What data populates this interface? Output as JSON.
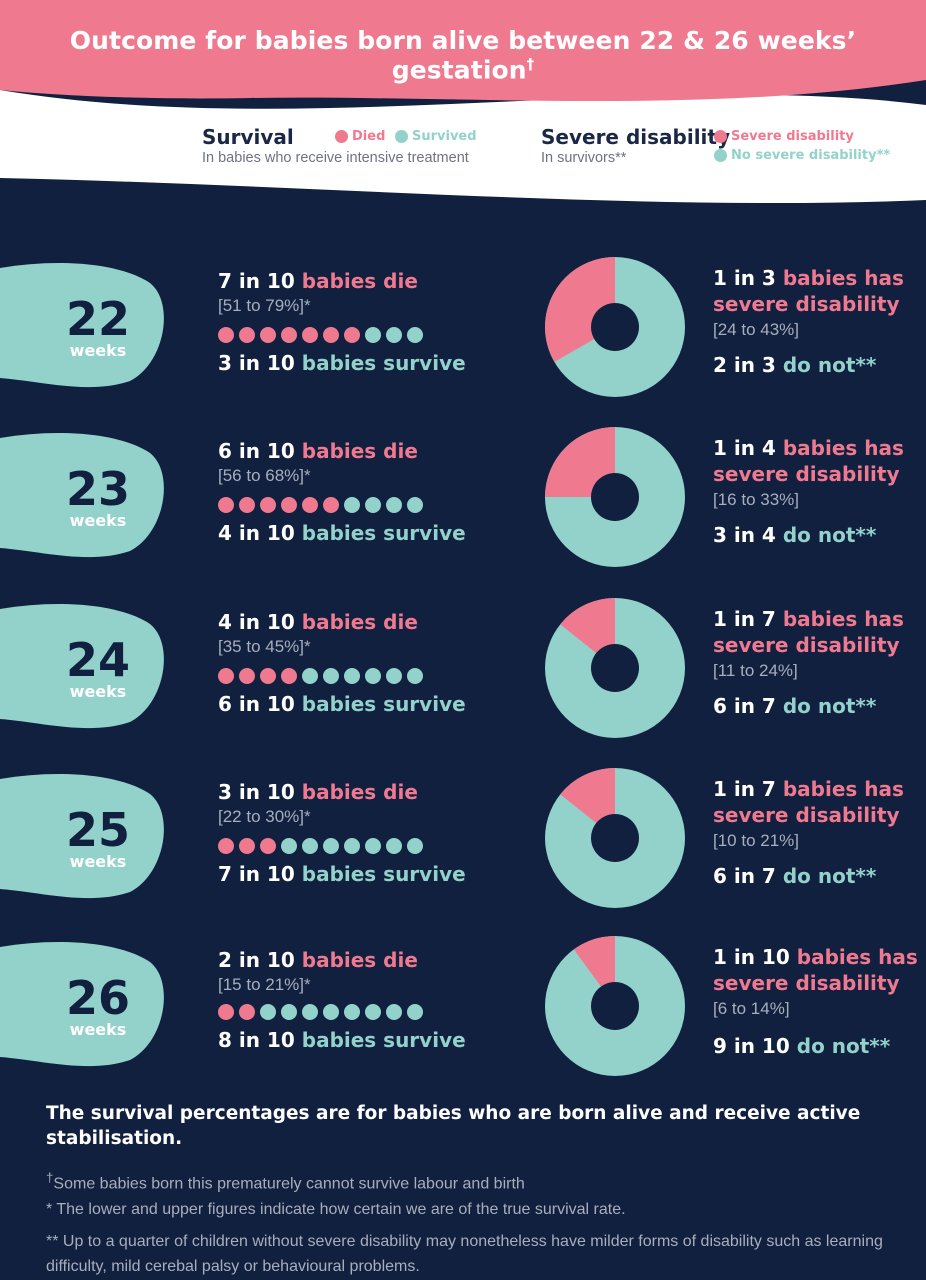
{
  "title": "Outcome for babies born alive between 22 & 26 weeks’ gestation",
  "title_mark": "†",
  "colors": {
    "pink": "#ef7a90",
    "teal": "#93d2ca",
    "navy": "#12203f"
  },
  "legend": {
    "survival": {
      "heading": "Survival",
      "sub": "In babies who receive intensive treatment",
      "died": "Died",
      "survived": "Survived"
    },
    "disability": {
      "heading": "Severe disability",
      "sub": "In survivors**",
      "severe": "Severe disability",
      "no_severe": "No severe disability**"
    }
  },
  "chart_data": {
    "type": "pie",
    "rows": [
      {
        "weeks": "22",
        "unit": "weeks",
        "die_n": "7 in 10",
        "die_text": "babies die",
        "die_range": "[51 to 79%]*",
        "died_of_10": 7,
        "survive_n": "3 in 10",
        "survive_text": "babies survive",
        "dis_n": "1 in 3",
        "dis_text1": "babies has",
        "dis_text2": "severe disability",
        "dis_range": "[24 to 43%]",
        "not_n": "2 in 3",
        "not_text": "do not**",
        "severe_fraction": 0.3333
      },
      {
        "weeks": "23",
        "unit": "weeks",
        "die_n": "6 in 10",
        "die_text": "babies die",
        "die_range": "[56 to 68%]*",
        "died_of_10": 6,
        "survive_n": "4 in 10",
        "survive_text": "babies survive",
        "dis_n": "1 in 4",
        "dis_text1": "babies has",
        "dis_text2": "severe disability",
        "dis_range": "[16 to 33%]",
        "not_n": "3 in 4",
        "not_text": "do not**",
        "severe_fraction": 0.25
      },
      {
        "weeks": "24",
        "unit": "weeks",
        "die_n": "4 in 10",
        "die_text": "babies die",
        "die_range": "[35 to 45%]*",
        "died_of_10": 4,
        "survive_n": "6 in 10",
        "survive_text": "babies survive",
        "dis_n": "1 in 7",
        "dis_text1": "babies has",
        "dis_text2": "severe disability",
        "dis_range": "[11 to 24%]",
        "not_n": "6 in 7",
        "not_text": "do not**",
        "severe_fraction": 0.1429
      },
      {
        "weeks": "25",
        "unit": "weeks",
        "die_n": "3 in 10",
        "die_text": "babies die",
        "die_range": "[22 to 30%]*",
        "died_of_10": 3,
        "survive_n": "7 in 10",
        "survive_text": "babies survive",
        "dis_n": "1 in 7",
        "dis_text1": "babies has",
        "dis_text2": "severe disability",
        "dis_range": "[10 to 21%]",
        "not_n": "6 in 7",
        "not_text": "do not**",
        "severe_fraction": 0.1429
      },
      {
        "weeks": "26",
        "unit": "weeks",
        "die_n": "2 in 10",
        "die_text": "babies die",
        "die_range": "[15 to 21%]*",
        "died_of_10": 2,
        "survive_n": "8 in 10",
        "survive_text": "babies survive",
        "dis_n": "1 in 10",
        "dis_text1": "babies has",
        "dis_text2": "severe disability",
        "dis_range": "[6 to 14%]",
        "not_n": "9 in 10",
        "not_text": "do not**",
        "severe_fraction": 0.1
      }
    ]
  },
  "footer": {
    "bold": "The survival percentages are for babies who are born alive and receive active stabilisation.",
    "note1_mark": "†",
    "note1": "Some babies born this prematurely cannot survive labour and birth",
    "note2": "* The lower and upper figures indicate how certain we are of the true survival rate.",
    "note3": "** Up to a quarter of children without severe disability may nonetheless have milder forms of disability such as learning difficulty, mild cerebal palsy or behavioural problems."
  }
}
